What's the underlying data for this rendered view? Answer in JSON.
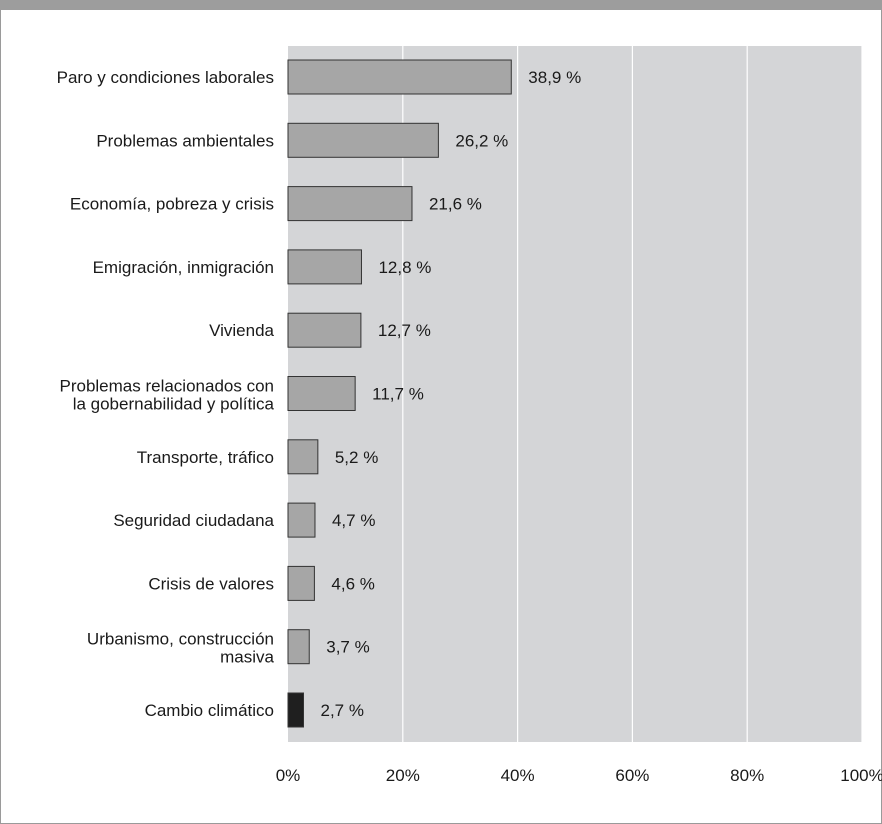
{
  "chart_data": {
    "type": "bar",
    "orientation": "horizontal",
    "title": "",
    "xlabel": "",
    "ylabel": "",
    "xlim": [
      0,
      100
    ],
    "grid": true,
    "legend": "none",
    "categories": [
      "Paro y condiciones laborales",
      "Problemas ambientales",
      "Economía, pobreza y crisis",
      "Emigración, inmigración",
      "Vivienda",
      "Problemas relacionados con la gobernabilidad y política",
      "Transporte, tráfico",
      "Seguridad ciudadana",
      "Crisis de valores",
      "Urbanismo, construcción masiva",
      "Cambio climático"
    ],
    "category_lines": [
      [
        "Paro y condiciones laborales"
      ],
      [
        "Problemas ambientales"
      ],
      [
        "Economía, pobreza y crisis"
      ],
      [
        "Emigración, inmigración"
      ],
      [
        "Vivienda"
      ],
      [
        "Problemas relacionados con",
        "la gobernabilidad y política"
      ],
      [
        "Transporte, tráfico"
      ],
      [
        "Seguridad ciudadana"
      ],
      [
        "Crisis de valores"
      ],
      [
        "Urbanismo, construcción",
        "masiva"
      ],
      [
        "Cambio climático"
      ]
    ],
    "values": [
      38.9,
      26.2,
      21.6,
      12.8,
      12.7,
      11.7,
      5.2,
      4.7,
      4.6,
      3.7,
      2.7
    ],
    "value_labels": [
      "38,9 %",
      "26,2 %",
      "21,6 %",
      "12,8 %",
      "12,7 %",
      "11,7 %",
      "5,2 %",
      "4,7 %",
      "4,6 %",
      "3,7 %",
      "2,7 %"
    ],
    "x_ticks": [
      "0%",
      "20%",
      "40%",
      "60%",
      "80%",
      "100%"
    ],
    "x_tick_values": [
      0,
      20,
      40,
      60,
      80,
      100
    ],
    "colors": {
      "bar_default": "#a6a6a6",
      "bar_highlight": "#1f1f1f",
      "plot_background": "#d4d5d7",
      "gridline": "#ffffff",
      "bar_border": "#333333"
    },
    "highlight_category": "Cambio climático"
  }
}
